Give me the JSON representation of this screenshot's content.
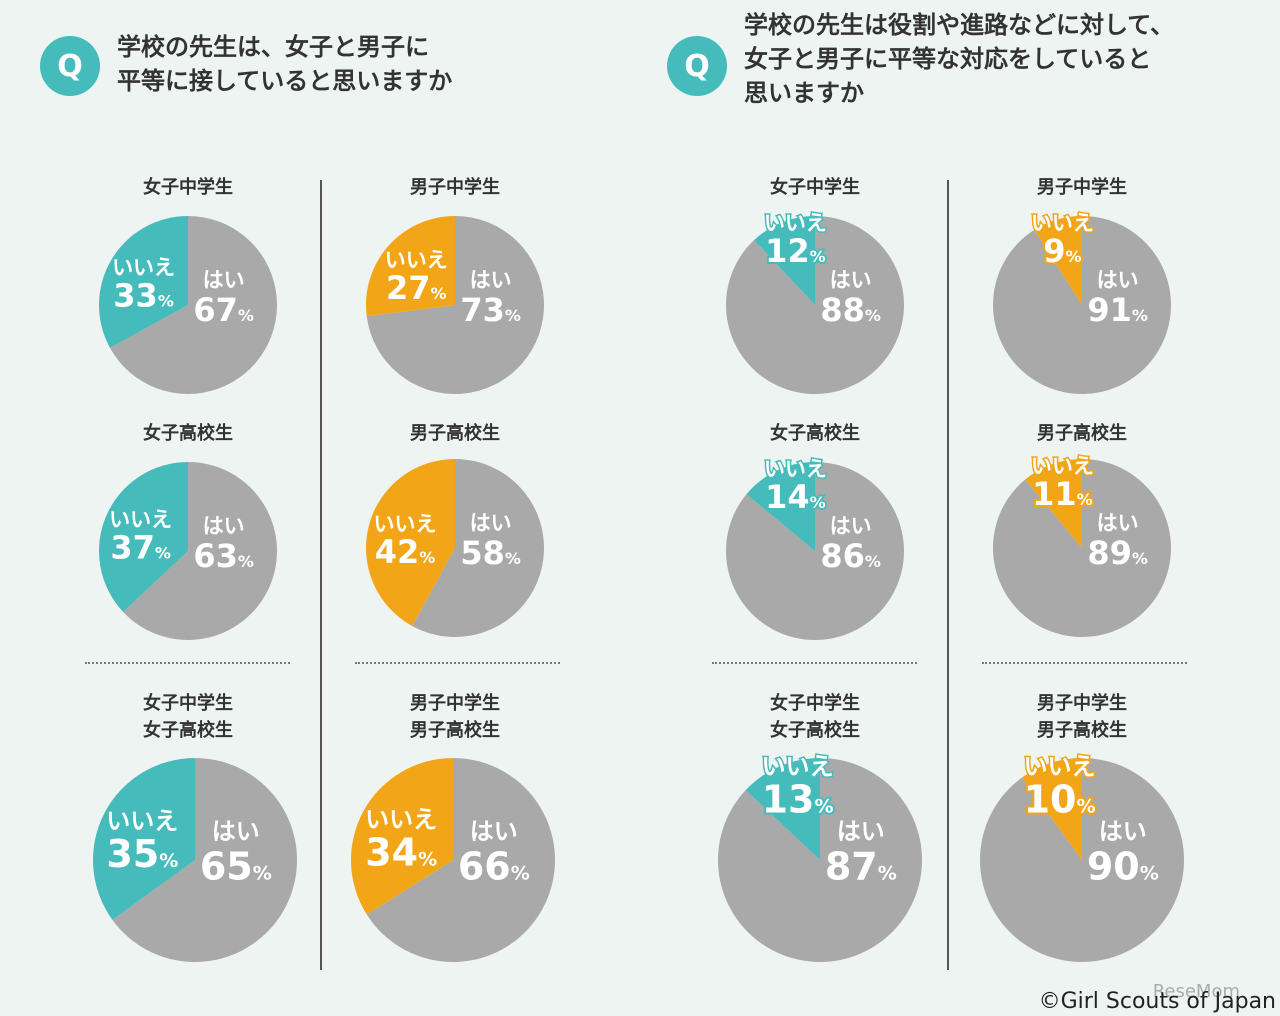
{
  "questions": [
    {
      "q_label": "Q",
      "text": "学校の先生は、女子と男子に\n平等に接していると思いますか"
    },
    {
      "q_label": "Q",
      "text": "学校の先生は役割や進路などに対して、\n女子と男子に平等な対応をしていると\n思いますか"
    }
  ],
  "labels": {
    "yes": "はい",
    "no": "いいえ",
    "percent": "%"
  },
  "colors": {
    "yes": "#a9a9a9",
    "no_girls": "#45bcbb",
    "no_boys": "#f2a516",
    "q_icon": "#45bcbb",
    "background": "#edf4f1"
  },
  "chart_data": [
    {
      "type": "pie",
      "title": "女子中学生",
      "question": 1,
      "categories": [
        "はい",
        "いいえ"
      ],
      "values": [
        67,
        33
      ]
    },
    {
      "type": "pie",
      "title": "男子中学生",
      "question": 1,
      "categories": [
        "はい",
        "いいえ"
      ],
      "values": [
        73,
        27
      ]
    },
    {
      "type": "pie",
      "title": "女子高校生",
      "question": 1,
      "categories": [
        "はい",
        "いいえ"
      ],
      "values": [
        63,
        37
      ]
    },
    {
      "type": "pie",
      "title": "男子高校生",
      "question": 1,
      "categories": [
        "はい",
        "いいえ"
      ],
      "values": [
        58,
        42
      ]
    },
    {
      "type": "pie",
      "title": "女子中学生\n女子高校生",
      "question": 1,
      "categories": [
        "はい",
        "いいえ"
      ],
      "values": [
        65,
        35
      ]
    },
    {
      "type": "pie",
      "title": "男子中学生\n男子高校生",
      "question": 1,
      "categories": [
        "はい",
        "いいえ"
      ],
      "values": [
        66,
        34
      ]
    },
    {
      "type": "pie",
      "title": "女子中学生",
      "question": 2,
      "categories": [
        "はい",
        "いいえ"
      ],
      "values": [
        88,
        12
      ]
    },
    {
      "type": "pie",
      "title": "男子中学生",
      "question": 2,
      "categories": [
        "はい",
        "いいえ"
      ],
      "values": [
        91,
        9
      ]
    },
    {
      "type": "pie",
      "title": "女子高校生",
      "question": 2,
      "categories": [
        "はい",
        "いいえ"
      ],
      "values": [
        86,
        14
      ]
    },
    {
      "type": "pie",
      "title": "男子高校生",
      "question": 2,
      "categories": [
        "はい",
        "いいえ"
      ],
      "values": [
        89,
        11
      ]
    },
    {
      "type": "pie",
      "title": "女子中学生\n女子高校生",
      "question": 2,
      "categories": [
        "はい",
        "いいえ"
      ],
      "values": [
        87,
        13
      ]
    },
    {
      "type": "pie",
      "title": "男子中学生\n男子高校生",
      "question": 2,
      "categories": [
        "はい",
        "いいえ"
      ],
      "values": [
        90,
        10
      ]
    }
  ],
  "footer": {
    "copyright": "©Girl Scouts of Japan",
    "watermark": "ReseMom"
  }
}
